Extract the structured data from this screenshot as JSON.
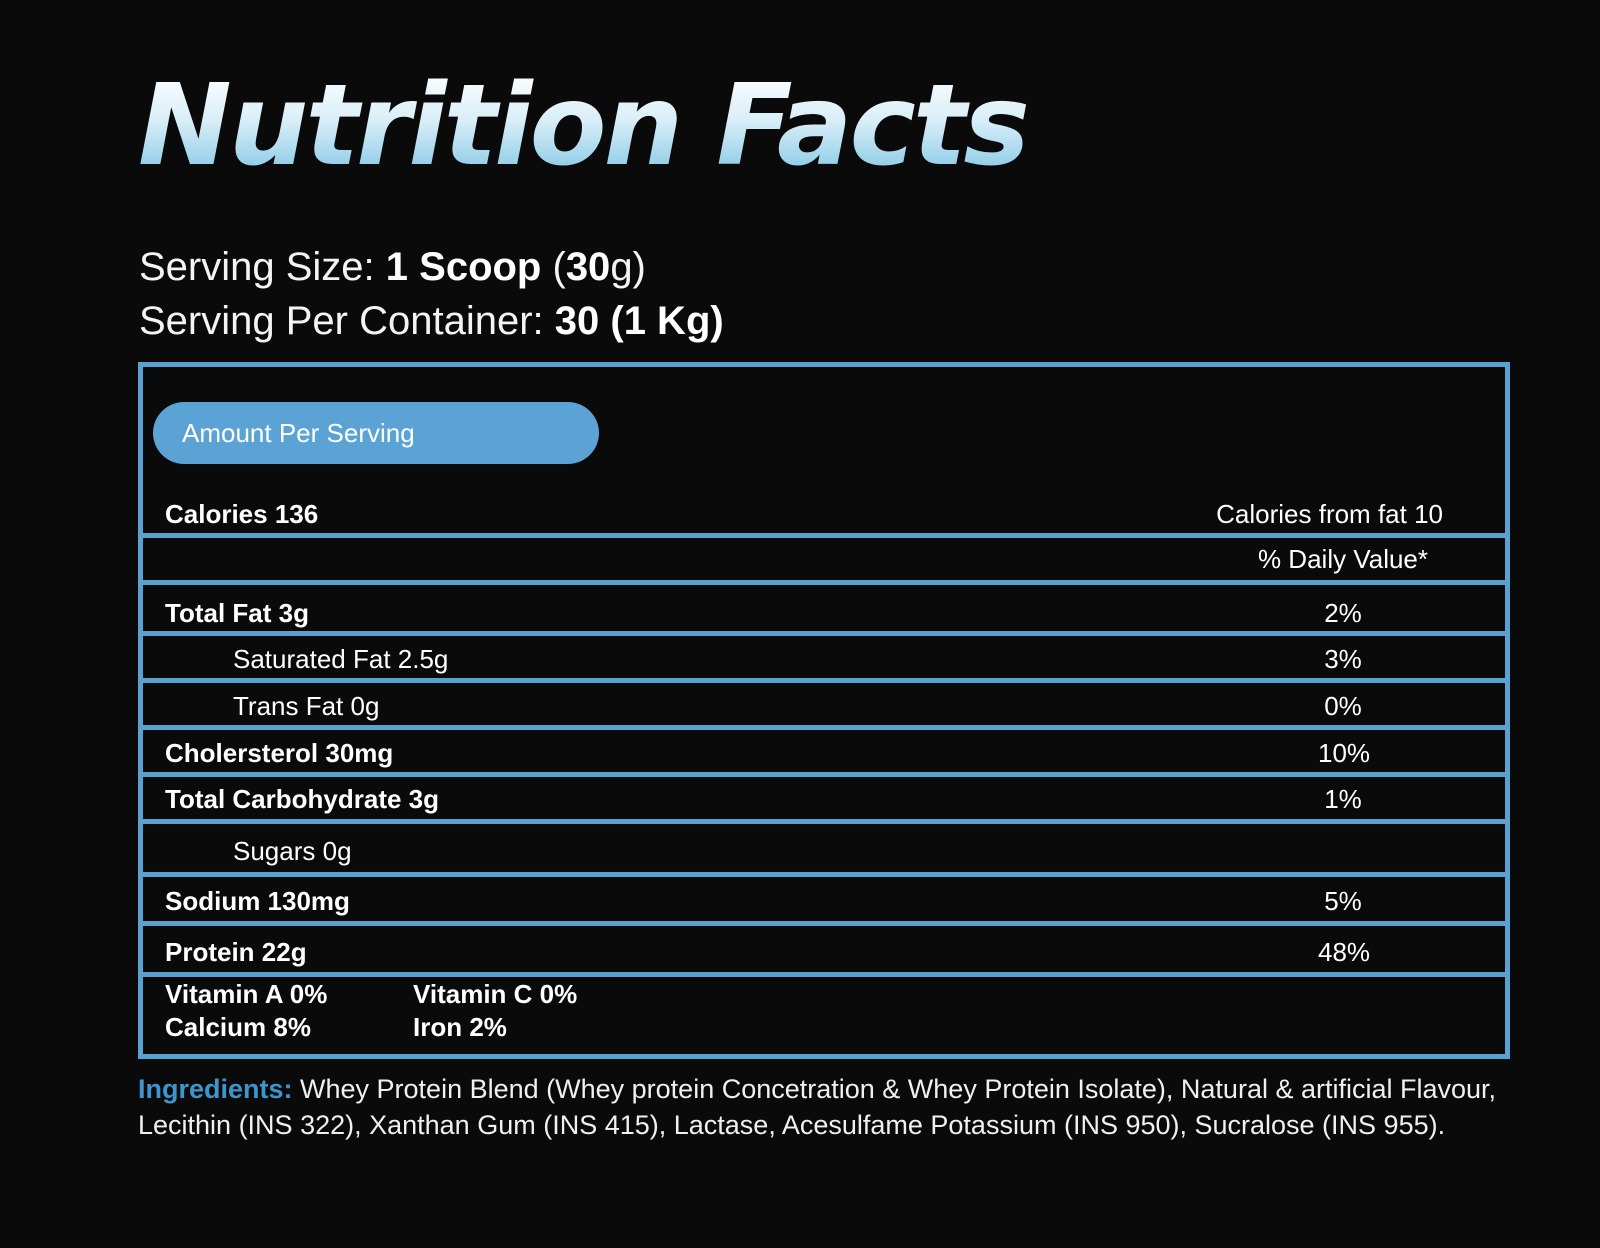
{
  "title": "Nutrition Facts",
  "serving": {
    "size_label": "Serving Size: ",
    "size_value_bold": "1 Scoop",
    "size_open": " (",
    "size_num_bold": "30",
    "size_close": "g)",
    "container_label": "Serving Per Container: ",
    "container_value_bold": "30 (1 Kg)"
  },
  "panel": {
    "amount_per_serving": "Amount Per Serving",
    "calories": "Calories 136",
    "calories_from_fat": "Calories from fat 10",
    "daily_value_header": "% Daily Value*"
  },
  "rows": [
    {
      "label": "Total Fat 3g",
      "pct": "2%"
    },
    {
      "label": "Saturated Fat 2.5g",
      "pct": "3%"
    },
    {
      "label": "Trans Fat 0g",
      "pct": "0%"
    },
    {
      "label": "Cholersterol 30mg",
      "pct": "10%"
    },
    {
      "label": "Total Carbohydrate 3g",
      "pct": "1%"
    },
    {
      "label": "Sugars 0g",
      "pct": ""
    },
    {
      "label": "Sodium 130mg",
      "pct": "5%"
    },
    {
      "label": "Protein  22g",
      "pct": "48%"
    }
  ],
  "vitamins": {
    "vitamin_a": "Vitamin A  0%",
    "vitamin_c": "Vitamin C  0%",
    "calcium": "Calcium  8%",
    "iron": "Iron  2%"
  },
  "ingredients": {
    "label": "Ingredients:",
    "text": " Whey Protein Blend (Whey protein Concetration & Whey Protein Isolate), Natural & artificial Flavour, Lecithin (INS 322), Xanthan Gum (INS 415), Lactase, Acesulfame Potassium (INS 950), Sucralose (INS 955)."
  },
  "colors": {
    "background": "#0b0a0a",
    "accent_blue": "#5aa0d0",
    "ingredients_label": "#3d95cc"
  }
}
